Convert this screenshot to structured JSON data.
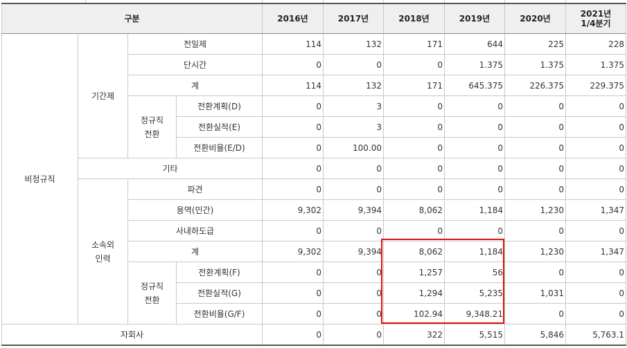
{
  "header": {
    "category": "구분",
    "years": [
      "2016년",
      "2017년",
      "2018년",
      "2019년",
      "2020년"
    ],
    "last_year_line1": "2021년",
    "last_year_line2": "1/4분기"
  },
  "groups": {
    "nonregular": "비정규직",
    "fixed_term": "기간제",
    "fixed_conv_line1": "정규직",
    "fixed_conv_line2": "전환",
    "outsourced_line1": "소속외",
    "outsourced_line2": "인력",
    "out_conv_line1": "정규직",
    "out_conv_line2": "전환"
  },
  "rows": [
    {
      "label": "전일제",
      "values": [
        "114",
        "132",
        "171",
        "644",
        "225",
        "228"
      ]
    },
    {
      "label": "단시간",
      "values": [
        "0",
        "0",
        "0",
        "1.375",
        "1.375",
        "1.375"
      ]
    },
    {
      "label": "계",
      "values": [
        "114",
        "132",
        "171",
        "645.375",
        "226.375",
        "229.375"
      ]
    },
    {
      "label": "전환계획(D)",
      "values": [
        "0",
        "3",
        "0",
        "0",
        "0",
        "0"
      ]
    },
    {
      "label": "전환실적(E)",
      "values": [
        "0",
        "3",
        "0",
        "0",
        "0",
        "0"
      ]
    },
    {
      "label": "전환비율(E/D)",
      "values": [
        "0",
        "100.00",
        "0",
        "0",
        "0",
        "0"
      ]
    },
    {
      "label": "기타",
      "values": [
        "0",
        "0",
        "0",
        "0",
        "0",
        "0"
      ]
    },
    {
      "label": "파견",
      "values": [
        "0",
        "0",
        "0",
        "0",
        "0",
        "0"
      ]
    },
    {
      "label": "용역(민간)",
      "values": [
        "9,302",
        "9,394",
        "8,062",
        "1,184",
        "1,230",
        "1,347"
      ]
    },
    {
      "label": "사내하도급",
      "values": [
        "0",
        "0",
        "0",
        "0",
        "0",
        "0"
      ]
    },
    {
      "label": "계",
      "values": [
        "9,302",
        "9,394",
        "8,062",
        "1,184",
        "1,230",
        "1,347"
      ]
    },
    {
      "label": "전환계획(F)",
      "values": [
        "0",
        "0",
        "1,257",
        "56",
        "0",
        "0"
      ]
    },
    {
      "label": "전환실적(G)",
      "values": [
        "0",
        "0",
        "1,294",
        "5,235",
        "1,031",
        "0"
      ]
    },
    {
      "label": "전환비율(G/F)",
      "values": [
        "0",
        "0",
        "102.94",
        "9,348.21",
        "0",
        "0"
      ]
    },
    {
      "label": "자회사",
      "values": [
        "0",
        "0",
        "322",
        "5,515",
        "5,846",
        "5,763.1"
      ]
    }
  ],
  "highlight_color": "#e01010"
}
